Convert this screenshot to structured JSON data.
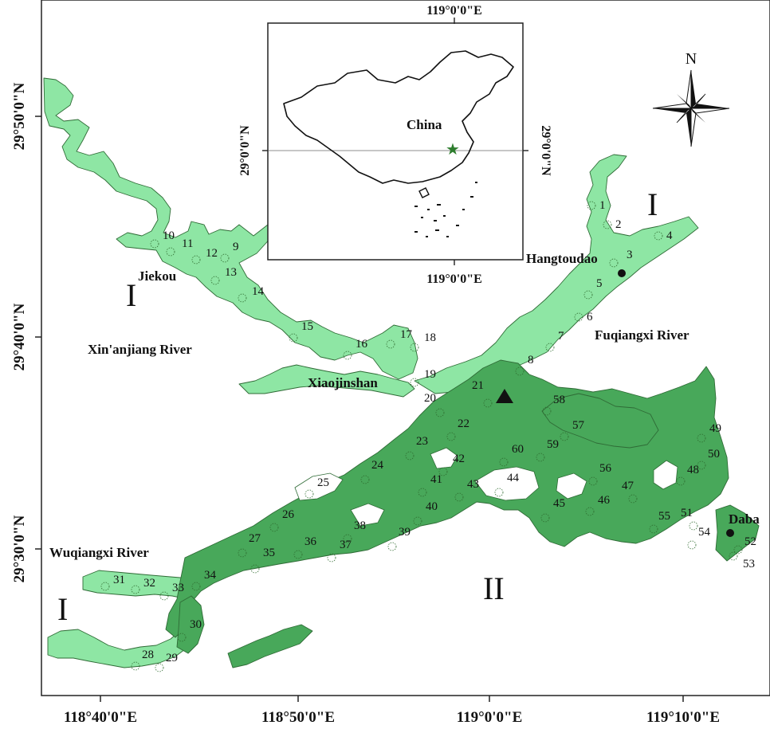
{
  "map": {
    "x_ticks": [
      "118°40'0\"E",
      "118°50'0\"E",
      "119°0'0\"E",
      "119°10'0\"E"
    ],
    "y_ticks": [
      "29°50'0\"N",
      "29°40'0\"N",
      "29°30'0\"N"
    ],
    "places": {
      "jiekou": "Jiekou",
      "xinanjiang_river": "Xin'anjiang River",
      "xiaojinshan": "Xiaojinshan",
      "fuqiangxi_river": "Fuqiangxi River",
      "wuqiangxi_river": "Wuqiangxi River",
      "hangtoudao": "Hangtoudao",
      "daba": "Daba"
    },
    "zones": {
      "z1": "I",
      "z2": "II"
    },
    "north_label": "N",
    "sites": [
      "1",
      "2",
      "3",
      "4",
      "5",
      "6",
      "7",
      "8",
      "9",
      "10",
      "11",
      "12",
      "13",
      "14",
      "15",
      "16",
      "17",
      "18",
      "19",
      "20",
      "21",
      "22",
      "23",
      "24",
      "25",
      "26",
      "27",
      "28",
      "29",
      "30",
      "31",
      "32",
      "33",
      "34",
      "35",
      "36",
      "37",
      "38",
      "39",
      "40",
      "41",
      "42",
      "43",
      "44",
      "45",
      "46",
      "47",
      "48",
      "49",
      "50",
      "51",
      "52",
      "53",
      "54",
      "55",
      "56",
      "57",
      "58",
      "59",
      "60"
    ],
    "colors": {
      "zone1_fill": "#8ee6a4",
      "zone2_fill": "#48a85a",
      "outline": "#2f6b36"
    }
  },
  "inset": {
    "top_tick": "119°0'0\"E",
    "bottom_tick": "119°0'0\"E",
    "left_tick": "29°0'0\"N",
    "right_tick": "29°0'0\"N",
    "country_label": "China",
    "star_color": "#2d7d2d"
  }
}
